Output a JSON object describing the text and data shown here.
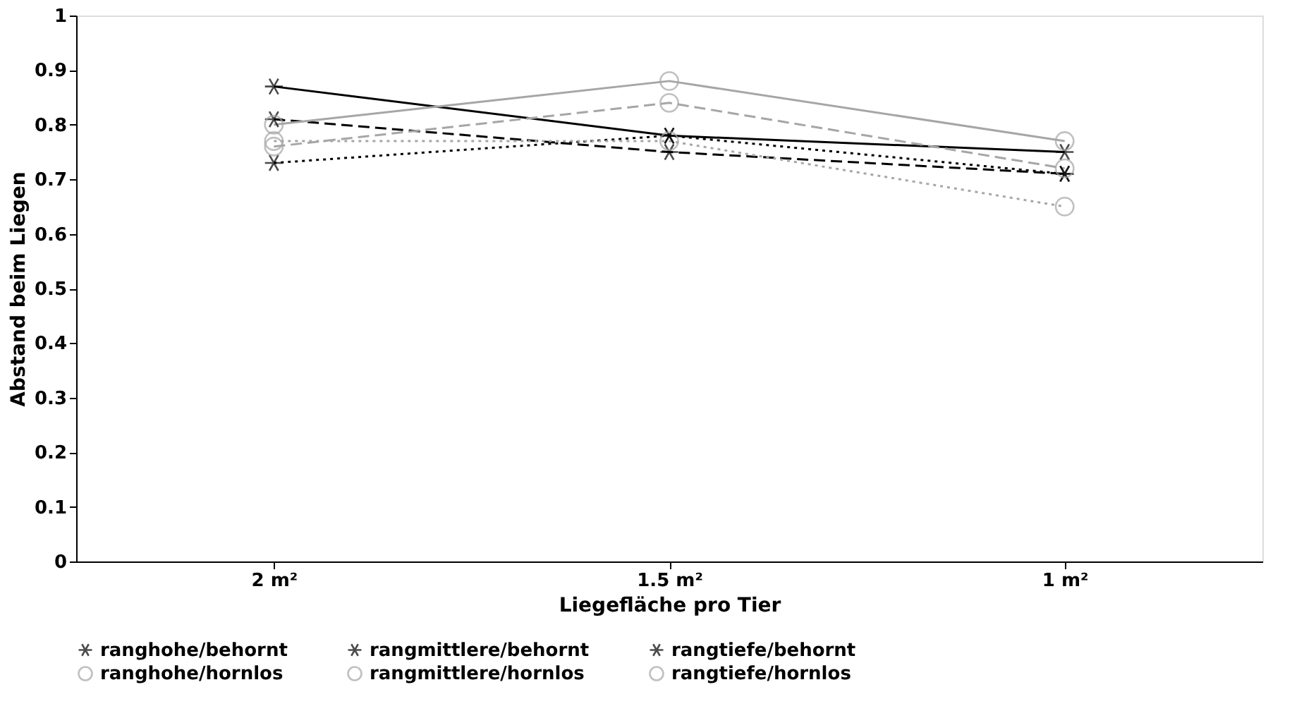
{
  "chart_data": {
    "type": "line",
    "xlabel": "Liegefläche pro Tier",
    "ylabel": "Abstand beim Liegen",
    "categories": [
      "2 m²",
      "1.5 m²",
      "1 m²"
    ],
    "series": [
      {
        "name": "ranghohe/behornt",
        "color": "#000000",
        "marker": "cross",
        "line_style": "solid",
        "values": [
          0.87,
          0.78,
          0.75
        ]
      },
      {
        "name": "rangmittlere/behornt",
        "color": "#000000",
        "marker": "cross",
        "line_style": "dashed",
        "values": [
          0.81,
          0.75,
          0.71
        ]
      },
      {
        "name": "rangtiefe/behornt",
        "color": "#000000",
        "marker": "cross",
        "line_style": "dotted",
        "values": [
          0.73,
          0.78,
          0.71
        ]
      },
      {
        "name": "ranghohe/hornlos",
        "color": "#a6a6a6",
        "marker": "circle",
        "line_style": "solid",
        "values": [
          0.8,
          0.88,
          0.77
        ]
      },
      {
        "name": "rangmittlere/hornlos",
        "color": "#a6a6a6",
        "marker": "circle",
        "line_style": "dashed",
        "values": [
          0.76,
          0.84,
          0.72
        ]
      },
      {
        "name": "rangtiefe/hornlos",
        "color": "#a6a6a6",
        "marker": "circle",
        "line_style": "dotted",
        "values": [
          0.77,
          0.77,
          0.65
        ]
      }
    ],
    "ylim": [
      0,
      1
    ],
    "yticks": [
      0,
      0.1,
      0.2,
      0.3,
      0.4,
      0.5,
      0.6,
      0.7,
      0.8,
      0.9,
      1
    ],
    "grid": false,
    "legend": "bottom"
  }
}
